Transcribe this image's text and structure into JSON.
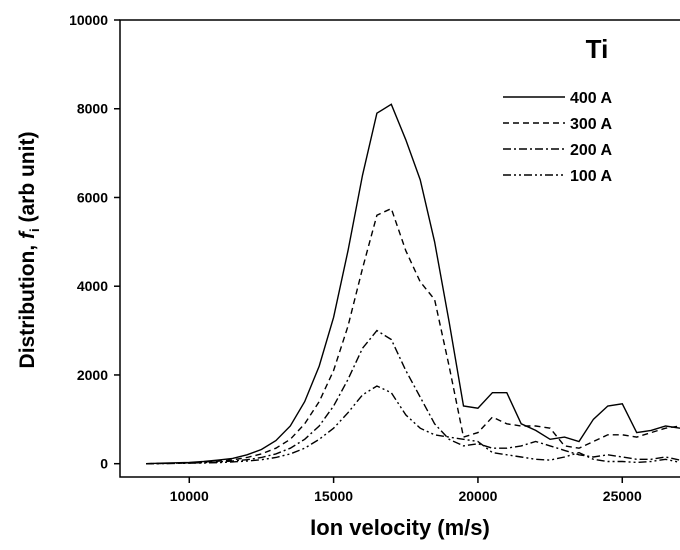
{
  "chart_data": {
    "type": "line",
    "xlabel": "Ion velocity (m/s)",
    "ylabel": [
      "Distribution, ",
      "f",
      "i",
      " (arb unit)"
    ],
    "legend_title": "Ti",
    "legend": "upper right",
    "xlim": [
      7600,
      27000
    ],
    "ylim": [
      -300,
      10000
    ],
    "xticks": [
      10000,
      15000,
      20000,
      25000
    ],
    "yticks": [
      0,
      2000,
      4000,
      6000,
      8000,
      10000
    ],
    "x": [
      8500,
      9000,
      9500,
      10000,
      10500,
      11000,
      11500,
      12000,
      12500,
      13000,
      13500,
      14000,
      14500,
      15000,
      15500,
      16000,
      16500,
      17000,
      17500,
      18000,
      18500,
      19000,
      19500,
      20000,
      20500,
      21000,
      21500,
      22000,
      22500,
      23000,
      23500,
      24000,
      24500,
      25000,
      25500,
      26000,
      26500,
      27000
    ],
    "series": [
      {
        "name": "400 A",
        "color": "#000000",
        "dash": "none",
        "values": [
          0,
          10,
          20,
          30,
          50,
          80,
          120,
          200,
          320,
          520,
          850,
          1400,
          2200,
          3300,
          4800,
          6500,
          7900,
          8100,
          7300,
          6400,
          5000,
          3200,
          1300,
          1250,
          1600,
          1600,
          900,
          750,
          550,
          600,
          500,
          1000,
          1300,
          1350,
          700,
          750,
          850,
          800
        ]
      },
      {
        "name": "300 A",
        "color": "#000000",
        "dash": "6,4",
        "values": [
          0,
          5,
          10,
          20,
          35,
          55,
          85,
          140,
          220,
          350,
          550,
          900,
          1400,
          2100,
          3100,
          4400,
          5600,
          5750,
          4800,
          4100,
          3700,
          2200,
          600,
          700,
          1050,
          900,
          850,
          850,
          800,
          400,
          350,
          500,
          650,
          650,
          600,
          700,
          800,
          850
        ]
      },
      {
        "name": "200 A",
        "color": "#000000",
        "dash": "8,3,2,3",
        "values": [
          0,
          5,
          10,
          15,
          25,
          40,
          60,
          90,
          140,
          220,
          350,
          550,
          850,
          1300,
          1900,
          2600,
          3000,
          2800,
          2100,
          1500,
          900,
          550,
          400,
          450,
          350,
          350,
          400,
          500,
          400,
          300,
          200,
          150,
          200,
          150,
          100,
          100,
          150,
          80
        ]
      },
      {
        "name": "100 A",
        "color": "#000000",
        "dash": "8,3,2,3,2,3",
        "values": [
          0,
          3,
          6,
          10,
          15,
          25,
          40,
          60,
          90,
          140,
          220,
          350,
          550,
          800,
          1150,
          1550,
          1750,
          1600,
          1100,
          800,
          650,
          600,
          550,
          500,
          250,
          200,
          150,
          100,
          80,
          150,
          250,
          100,
          50,
          50,
          30,
          50,
          100,
          30
        ]
      }
    ]
  }
}
